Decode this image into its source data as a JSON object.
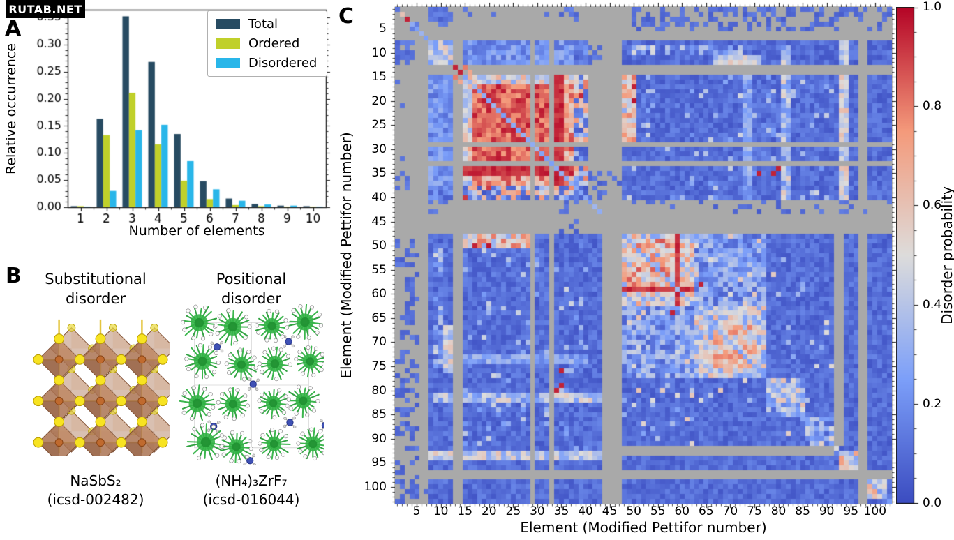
{
  "watermark": {
    "text": "RUTAB.NET",
    "bg": "#000000",
    "fg": "#ffffff"
  },
  "panels": {
    "a": "A",
    "b": "B",
    "c": "C"
  },
  "panel_b": {
    "left": {
      "title1": "Substitutional",
      "title2": "disorder",
      "formula": "NaSbS₂",
      "icsd": "(icsd-002482)"
    },
    "right": {
      "title1": "Positional",
      "title2": "disorder",
      "formula": "(NH₄)₃ZrF₇",
      "icsd": "(icsd-016044)"
    }
  },
  "chart_data": [
    {
      "type": "bar",
      "title": "",
      "xlabel": "Number of elements",
      "ylabel": "Relative occurrence",
      "categories": [
        "1",
        "2",
        "3",
        "4",
        "5",
        "6",
        "7",
        "8",
        "9",
        "10"
      ],
      "series": [
        {
          "name": "Total",
          "color": "#274b62",
          "values": [
            0.002,
            0.163,
            0.352,
            0.268,
            0.135,
            0.048,
            0.016,
            0.006,
            0.003,
            0.002
          ]
        },
        {
          "name": "Ordered",
          "color": "#c0d02a",
          "values": [
            0.002,
            0.133,
            0.211,
            0.116,
            0.049,
            0.015,
            0.004,
            0.002,
            0.001,
            0.001
          ]
        },
        {
          "name": "Disordered",
          "color": "#29b6e9",
          "values": [
            0.001,
            0.03,
            0.142,
            0.152,
            0.085,
            0.033,
            0.012,
            0.005,
            0.003,
            0.001
          ]
        }
      ],
      "ylim": [
        0,
        0.364
      ],
      "ytick_values": [
        0,
        0.05,
        0.1,
        0.15,
        0.2,
        0.25,
        0.3,
        0.35
      ],
      "ytick_labels": [
        "0.00",
        "0.05",
        "0.10",
        "0.15",
        "0.20",
        "0.25",
        "0.30",
        "0.35"
      ],
      "legend_position": "upper right",
      "grid": false
    },
    {
      "type": "heatmap",
      "title": "",
      "xlabel": "Element (Modified Pettifor number)",
      "ylabel": "Element (Modified Pettifor number)",
      "x_range": [
        1,
        103
      ],
      "y_range": [
        1,
        103
      ],
      "y_direction": "downward",
      "xticks": [
        5,
        10,
        15,
        20,
        25,
        30,
        35,
        40,
        45,
        50,
        55,
        60,
        65,
        70,
        75,
        80,
        85,
        90,
        95,
        100
      ],
      "yticks": [
        5,
        10,
        15,
        20,
        25,
        30,
        35,
        40,
        45,
        50,
        55,
        60,
        65,
        70,
        75,
        80,
        85,
        90,
        95,
        100
      ],
      "colorbar": {
        "label": "Disorder probability",
        "tick_values": [
          0,
          0.2,
          0.4,
          0.6,
          0.8,
          1.0
        ],
        "tick_labels": [
          "0.0",
          "0.2",
          "0.4",
          "0.6",
          "0.8",
          "1.0"
        ],
        "range": [
          0,
          1
        ]
      },
      "nan_color": "#a9a9a9",
      "colormap": "coolwarm",
      "colormap_anchors": [
        [
          0.0,
          [
            59,
            76,
            192
          ]
        ],
        [
          0.25,
          [
            124,
            159,
            249
          ]
        ],
        [
          0.5,
          [
            221,
            220,
            219
          ]
        ],
        [
          0.75,
          [
            244,
            154,
            123
          ]
        ],
        [
          1.0,
          [
            180,
            4,
            38
          ]
        ]
      ],
      "structure": {
        "note": "approximate reconstruction of symmetric disorder-probability matrix; gray = no data",
        "seed": 11,
        "regions": [
          {
            "r": [
              8,
              103
            ],
            "c": [
              8,
              103
            ],
            "v": 0.1,
            "n": 0.07
          },
          {
            "r": [
              8,
              12
            ],
            "c": [
              8,
              16
            ],
            "v": 0.42,
            "n": 0.2,
            "sym": true
          },
          {
            "r": [
              8,
              12
            ],
            "c": [
              17,
              43
            ],
            "v": 0.15,
            "n": 0.1,
            "sym": true
          },
          {
            "r": [
              9,
              10
            ],
            "c": [
              50,
              75
            ],
            "v": 0.32,
            "n": 0.18,
            "p": 0.5,
            "sym": true
          },
          {
            "r": [
              15,
              37
            ],
            "c": [
              15,
              37
            ],
            "v": 0.72,
            "n": 0.18
          },
          {
            "r": [
              15,
              37
            ],
            "c": [
              15,
              16
            ],
            "v": 0.5,
            "n": 0.22,
            "sym": true
          },
          {
            "r": [
              17,
              32
            ],
            "c": [
              17,
              32
            ],
            "v": 0.85,
            "n": 0.12
          },
          {
            "r": [
              15,
              37
            ],
            "c": [
              8,
              12
            ],
            "v": 0.22,
            "n": 0.12,
            "sym": true
          },
          {
            "r": [
              38,
              40
            ],
            "c": [
              15,
              37
            ],
            "v": 0.5,
            "n": 0.3,
            "p": 0.5,
            "sym": true
          },
          {
            "r": [
              15,
              37
            ],
            "c": [
              38,
              40
            ],
            "v": 0.75,
            "n": 0.2,
            "p": 0.15,
            "sym": true
          },
          {
            "r": [
              15,
              37
            ],
            "c": [
              34,
              35
            ],
            "v": 0.93,
            "n": 0.05,
            "sym": true
          },
          {
            "r": [
              16,
              28
            ],
            "c": [
              48,
              50
            ],
            "v": 0.55,
            "n": 0.25,
            "sym": true
          },
          {
            "r": [
              48,
              50
            ],
            "c": [
              15,
              27
            ],
            "v": 0.6,
            "n": 0.22,
            "sym": true
          },
          {
            "r": [
              48,
              62
            ],
            "c": [
              48,
              62
            ],
            "v": 0.5,
            "n": 0.25
          },
          {
            "r": [
              49,
              59
            ],
            "c": [
              49,
              59
            ],
            "v": 0.65,
            "n": 0.22
          },
          {
            "r": [
              48,
              77
            ],
            "c": [
              59,
              59
            ],
            "v": 0.92,
            "n": 0.05,
            "sym": true
          },
          {
            "r": [
              63,
              77
            ],
            "c": [
              63,
              77
            ],
            "v": 0.45,
            "n": 0.22
          },
          {
            "r": [
              67,
              75
            ],
            "c": [
              67,
              75
            ],
            "v": 0.6,
            "n": 0.2
          },
          {
            "r": [
              48,
              62
            ],
            "c": [
              63,
              77
            ],
            "v": 0.25,
            "n": 0.18,
            "sym": true
          },
          {
            "r": [
              78,
              85
            ],
            "c": [
              78,
              85
            ],
            "v": 0.35,
            "n": 0.27
          },
          {
            "r": [
              86,
              92
            ],
            "c": [
              86,
              92
            ],
            "v": 0.28,
            "n": 0.22
          },
          {
            "r": [
              67,
              76
            ],
            "c": [
              11,
              12
            ],
            "v": 0.45,
            "n": 0.15,
            "sym": true
          },
          {
            "r": [
              73,
              74
            ],
            "c": [
              14,
              40
            ],
            "v": 0.28,
            "n": 0.12,
            "sym": true
          },
          {
            "r": [
              81,
              82
            ],
            "c": [
              9,
              43
            ],
            "v": 0.38,
            "n": 0.2,
            "sym": true
          },
          {
            "r": [
              8,
              45
            ],
            "c": [
              93,
              94
            ],
            "v": 0.45,
            "n": 0.18,
            "sym": true
          },
          {
            "r": [
              93,
              96
            ],
            "c": [
              93,
              96
            ],
            "v": 0.5,
            "n": 0.25
          },
          {
            "r": [
              99,
              102
            ],
            "c": [
              99,
              102
            ],
            "v": 0.48,
            "n": 0.25
          },
          {
            "r": [
              15,
              40
            ],
            "c": [
              48,
              92
            ],
            "v": 0.32,
            "n": 0.15,
            "p": 0.08,
            "sym": true
          },
          {
            "r": [
              48,
              92
            ],
            "c": [
              48,
              92
            ],
            "v": 0.42,
            "n": 0.18,
            "p": 0.06
          }
        ],
        "carves": [
          {
            "rows": [
              6,
              7
            ]
          },
          {
            "cols": [
              6,
              7
            ]
          },
          {
            "rows": [
              13,
              14
            ]
          },
          {
            "cols": [
              13,
              14
            ]
          },
          {
            "rows": [
              29,
              29
            ]
          },
          {
            "cols": [
              29,
              29
            ]
          },
          {
            "rows": [
              33,
              33
            ]
          },
          {
            "cols": [
              33,
              33
            ]
          },
          {
            "rows": [
              41,
              43
            ]
          },
          {
            "cols": [
              41,
              43
            ],
            "rows": [
              1,
              47
            ]
          },
          {
            "rows": [
              44,
              47
            ]
          },
          {
            "cols": [
              44,
              47
            ]
          },
          {
            "rows": [
              97,
              98
            ]
          },
          {
            "cols": [
              97,
              98
            ]
          },
          {
            "rows": [
              92,
              93
            ],
            "cols": [
              48,
              91
            ]
          },
          {
            "cols": [
              92,
              93
            ],
            "rows": [
              48,
              91
            ]
          }
        ],
        "sparse_after": [
          {
            "r": [
              1,
              3
            ],
            "c": [
              8,
              11
            ],
            "v": 0.1,
            "n": 0.05,
            "p": 0.6,
            "sym": true
          },
          {
            "r": [
              3,
              4
            ],
            "c": [
              50,
              66
            ],
            "v": 0.1,
            "n": 0.05,
            "p": 0.45,
            "sym": true
          },
          {
            "r": [
              1,
              5
            ],
            "c": [
              67,
              92
            ],
            "v": 0.1,
            "n": 0.05,
            "p": 0.28,
            "sym": true
          },
          {
            "r": [
              1,
              2
            ],
            "c": [
              95,
              103
            ],
            "v": 0.1,
            "n": 0.05,
            "p": 0.3,
            "sym": true
          },
          {
            "r": [
              8,
              12
            ],
            "c": [
              1,
              4
            ],
            "v": 0.12,
            "n": 0.05,
            "p": 0.55,
            "sym": true
          },
          {
            "r": [
              15,
              16
            ],
            "c": [
              1,
              2
            ],
            "v": 0.12,
            "n": 0.05,
            "p": 0.5,
            "sym": true
          },
          {
            "r": [
              35,
              38
            ],
            "c": [
              1,
              3
            ],
            "v": 0.12,
            "n": 0.05,
            "p": 0.5,
            "sym": true
          },
          {
            "r": [
              49,
              103
            ],
            "c": [
              1,
              5
            ],
            "v": 0.1,
            "n": 0.05,
            "p": 0.2,
            "sym": true
          },
          {
            "r": [
              41,
              43
            ],
            "c": [
              8,
              12
            ],
            "v": 0.12,
            "n": 0.06,
            "p": 0.5,
            "sym": true
          },
          {
            "r": [
              41,
              43
            ],
            "c": [
              48,
              103
            ],
            "v": 0.1,
            "n": 0.05,
            "p": 0.16
          },
          {
            "r": [
              35,
              40
            ],
            "c": [
              41,
              47
            ],
            "v": 0.1,
            "n": 0.05,
            "p": 0.25,
            "sym": true
          },
          {
            "r": [
              99,
              103
            ],
            "c": [
              1,
              7
            ],
            "v": 0.1,
            "n": 0.05,
            "p": 0.3
          }
        ],
        "diagonal": [
          {
            "range": [
              4,
              43
            ],
            "v": 0.3
          },
          {
            "range": [
              48,
              91
            ],
            "v": 0.3
          },
          {
            "range": [
              94,
              96
            ],
            "v": 0.42
          },
          {
            "range": [
              99,
              103
            ],
            "v": 0.28
          }
        ],
        "specials": [
          [
            1,
            1,
            0.12
          ],
          [
            2,
            2,
            0.6
          ],
          [
            3,
            3,
            0.95
          ],
          [
            4,
            4,
            0.3
          ],
          [
            5,
            5,
            0.25
          ],
          [
            4,
            5,
            0.15
          ],
          [
            5,
            4,
            0.15
          ],
          [
            13,
            13,
            0.95
          ],
          [
            14,
            14,
            0.95
          ],
          [
            13,
            15,
            0.8
          ],
          [
            15,
            13,
            0.8
          ],
          [
            14,
            16,
            0.7
          ],
          [
            16,
            14,
            0.7
          ],
          [
            20,
            50,
            0.97
          ],
          [
            50,
            20,
            0.97
          ],
          [
            17,
            50,
            0.95
          ],
          [
            50,
            17,
            0.95
          ],
          [
            35,
            79,
            0.95
          ],
          [
            79,
            35,
            0.95
          ],
          [
            34,
            80,
            0.95
          ],
          [
            80,
            34,
            0.95
          ],
          [
            35,
            76,
            0.95
          ],
          [
            76,
            35,
            0.95
          ],
          [
            58,
            64,
            0.95
          ],
          [
            64,
            58,
            0.95
          ],
          [
            21,
            2,
            0.12
          ],
          [
            2,
            21,
            0.12
          ],
          [
            32,
            2,
            0.12
          ],
          [
            2,
            32,
            0.12
          ]
        ]
      }
    }
  ]
}
